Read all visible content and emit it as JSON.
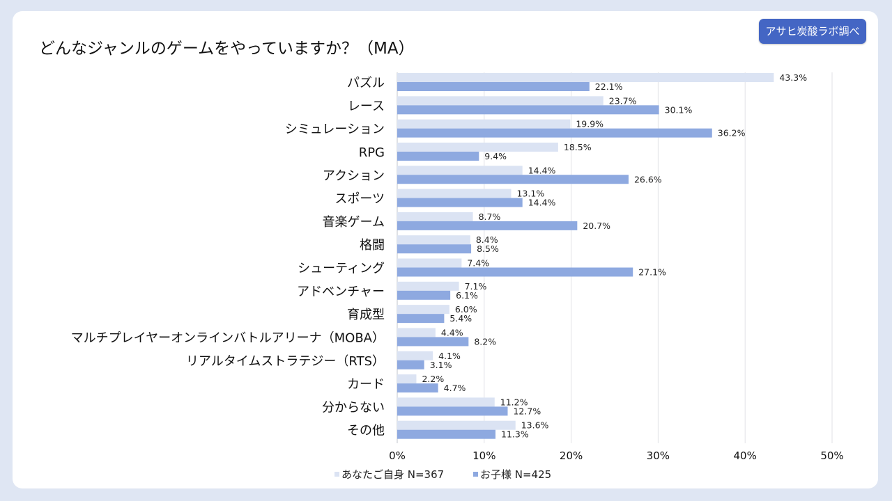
{
  "title": "どんなジャンルのゲームをやっていますか？（MA）",
  "badge": "アサヒ炭酸ラボ調べ",
  "chart_data": {
    "type": "bar",
    "orientation": "horizontal",
    "title": "どんなジャンルのゲームをやっていますか？（MA）",
    "categories": [
      "パズル",
      "レース",
      "シミュレーション",
      "RPG",
      "アクション",
      "スポーツ",
      "音楽ゲーム",
      "格闘",
      "シューティング",
      "アドベンチャー",
      "育成型",
      "マルチプレイヤーオンラインバトルアリーナ（MOBA）",
      "リアルタイムストラテジー（RTS）",
      "カード",
      "分からない",
      "その他"
    ],
    "series": [
      {
        "name": "あなたご自身 N=367",
        "color": "#dbe3f3",
        "values": [
          43.3,
          23.7,
          19.9,
          18.5,
          14.4,
          13.1,
          8.7,
          8.4,
          7.4,
          7.1,
          6.0,
          4.4,
          4.1,
          2.2,
          11.2,
          13.6
        ]
      },
      {
        "name": "お子様 N=425",
        "color": "#8ea9e0",
        "values": [
          22.1,
          30.1,
          36.2,
          9.4,
          26.6,
          14.4,
          20.7,
          8.5,
          27.1,
          6.1,
          5.4,
          8.2,
          3.1,
          4.7,
          12.7,
          11.3
        ]
      }
    ],
    "xlim": [
      0,
      50
    ],
    "xticks": [
      "0%",
      "10%",
      "20%",
      "30%",
      "40%",
      "50%"
    ],
    "value_suffix": "%",
    "grid": true,
    "legend": "bottom"
  }
}
